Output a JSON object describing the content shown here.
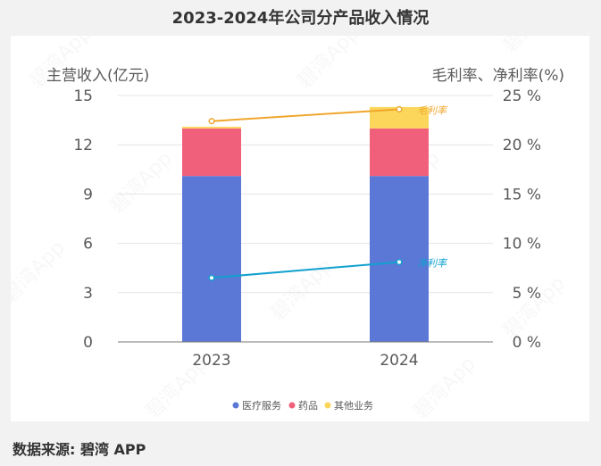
{
  "source_text": "数据来源: 碧湾 APP",
  "watermark": "碧湾App",
  "chart_data": {
    "type": "bar",
    "stacked": true,
    "title": "2023-2024年公司分产品收入情况",
    "categories": [
      "2023",
      "2024"
    ],
    "ylabel_left": "主营收入(亿元)",
    "ylabel_right": "毛利率、净利率(%)",
    "ylim_left": [
      0,
      15
    ],
    "ylim_right": [
      0,
      25
    ],
    "yticks_left": [
      "0",
      "3",
      "6",
      "9",
      "12",
      "15"
    ],
    "yticks_right": [
      "0 %",
      "5 %",
      "10 %",
      "15 %",
      "20 %",
      "25 %"
    ],
    "grid": true,
    "legend": "bottom",
    "series": [
      {
        "name": "医疗服务",
        "values": [
          10.1,
          10.1
        ],
        "color": "#5b78d6"
      },
      {
        "name": "药品",
        "values": [
          2.9,
          2.9
        ],
        "color": "#f0607a"
      },
      {
        "name": "其他业务",
        "values": [
          0.1,
          1.3
        ],
        "color": "#fbd65a"
      }
    ],
    "lines": [
      {
        "name": "毛利率",
        "values": [
          22.4,
          23.6
        ],
        "color": "#f0a62c",
        "axis": "right"
      },
      {
        "name": "净利率",
        "values": [
          6.5,
          8.1
        ],
        "color": "#12a1cf",
        "axis": "right"
      }
    ]
  }
}
